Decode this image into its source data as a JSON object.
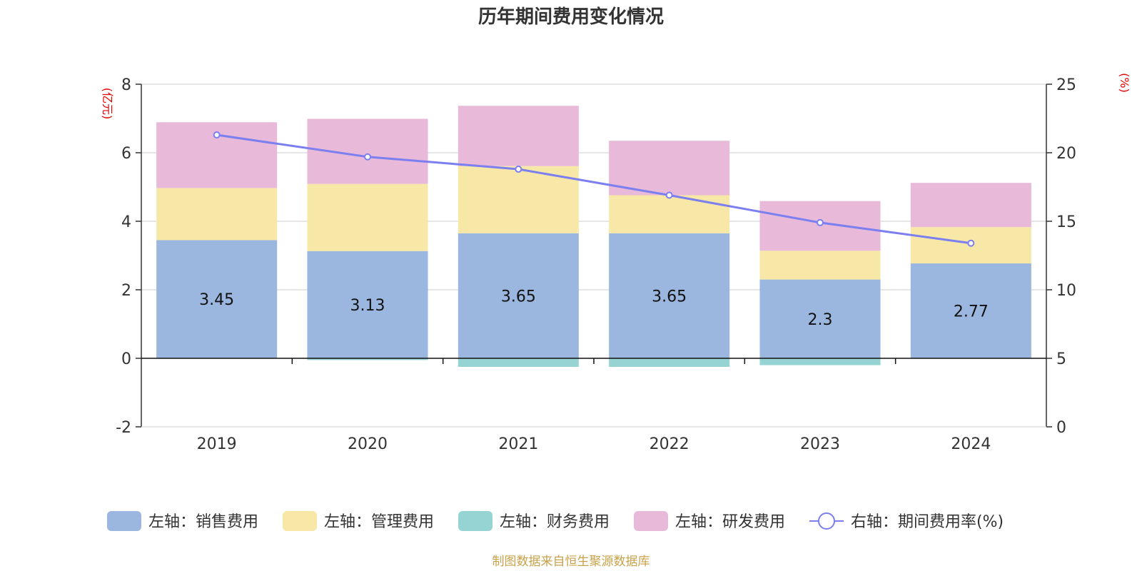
{
  "chart_data": {
    "type": "bar",
    "title": "历年期间费用变化情况",
    "categories": [
      "2019",
      "2020",
      "2021",
      "2022",
      "2023",
      "2024"
    ],
    "left_axis": {
      "unit": "(亿元)",
      "range": [
        -2,
        8
      ],
      "ticks": [
        -2,
        0,
        2,
        4,
        6,
        8
      ]
    },
    "right_axis": {
      "unit": "(%)",
      "range": [
        0,
        25
      ],
      "ticks": [
        0,
        5,
        10,
        15,
        20,
        25
      ]
    },
    "series": [
      {
        "name": "左轴：销售费用",
        "type": "bar",
        "axis": "left",
        "color": "#9bb7e0",
        "values": [
          3.45,
          3.13,
          3.65,
          3.65,
          2.3,
          2.77
        ],
        "labels": [
          "3.45",
          "3.13",
          "3.65",
          "3.65",
          "2.3",
          "2.77"
        ]
      },
      {
        "name": "左轴：管理费用",
        "type": "bar",
        "axis": "left",
        "color": "#f8e8a8",
        "values": [
          1.52,
          1.96,
          1.96,
          1.11,
          0.84,
          1.06
        ]
      },
      {
        "name": "左轴：财务费用",
        "type": "bar",
        "axis": "left",
        "color": "#96d4d4",
        "values": [
          0.0,
          -0.05,
          -0.25,
          -0.25,
          -0.2,
          0.0
        ]
      },
      {
        "name": "左轴：研发费用",
        "type": "bar",
        "axis": "left",
        "color": "#e8b9d9",
        "values": [
          1.92,
          1.9,
          1.76,
          1.59,
          1.45,
          1.29
        ]
      },
      {
        "name": "右轴：期间费用率(%)",
        "type": "line",
        "axis": "right",
        "color": "#7b7ff0",
        "values": [
          21.3,
          19.7,
          18.8,
          16.9,
          14.9,
          13.4
        ]
      }
    ],
    "grid": true,
    "legend_position": "bottom",
    "source": "制图数据来自恒生聚源数据库"
  }
}
